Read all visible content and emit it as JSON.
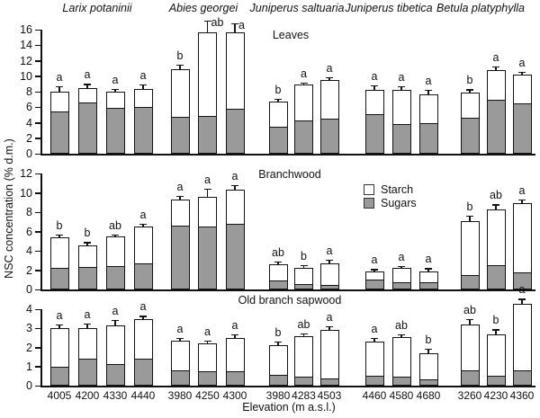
{
  "figure": {
    "ylabel": "NSC concentration (% d.m.)",
    "xlabel": "Elevation (m a.s.l.)",
    "legend": [
      {
        "label": "Starch",
        "color": "#ffffff"
      },
      {
        "label": "Sugars",
        "color": "#9a9a9a"
      }
    ]
  },
  "chart_data": {
    "type": "bar",
    "stacked": true,
    "units": "% d.m.",
    "series_names": [
      "Sugars",
      "Starch"
    ],
    "legend_position": "center-right of Branchwood panel",
    "grid": false,
    "species": [
      "Larix potaninii",
      "Abies georgei",
      "Juniperus saltuaria",
      "Juniperus tibetica",
      "Betula platyphylla"
    ],
    "elevations": [
      [
        "4005",
        "4200",
        "4330",
        "4440"
      ],
      [
        "3980",
        "4250",
        "4300"
      ],
      [
        "3980",
        "4283",
        "4503"
      ],
      [
        "4460",
        "4580",
        "4680"
      ],
      [
        "3260",
        "4230",
        "4360"
      ]
    ],
    "panels": [
      {
        "title": "Leaves",
        "ylim": [
          0,
          16
        ],
        "ytick_step": 2,
        "groups": [
          {
            "species": "Larix potaninii",
            "bars": [
              {
                "sugars": 5.4,
                "total": 8.0,
                "err": 0.7,
                "letter": "a"
              },
              {
                "sugars": 6.6,
                "total": 8.5,
                "err": 0.5,
                "letter": "a"
              },
              {
                "sugars": 5.9,
                "total": 8.0,
                "err": 0.4,
                "letter": "a"
              },
              {
                "sugars": 6.0,
                "total": 8.4,
                "err": 0.5,
                "letter": "a"
              }
            ]
          },
          {
            "species": "Abies georgei",
            "bars": [
              {
                "sugars": 4.7,
                "total": 10.9,
                "err": 0.6,
                "letter": "b"
              },
              {
                "sugars": 4.9,
                "total": 15.7,
                "err": 1.5,
                "letter": "ab",
                "letter_side": true
              },
              {
                "sugars": 5.8,
                "total": 15.6,
                "err": 1.2,
                "letter": "a",
                "letter_side": true
              }
            ]
          },
          {
            "species": "Juniperus saltuaria",
            "bars": [
              {
                "sugars": 3.5,
                "total": 6.7,
                "err": 0.4,
                "letter": "b"
              },
              {
                "sugars": 4.3,
                "total": 8.9,
                "err": 0.3,
                "letter": "a"
              },
              {
                "sugars": 4.5,
                "total": 9.5,
                "err": 0.4,
                "letter": "a"
              }
            ]
          },
          {
            "species": "Juniperus tibetica",
            "bars": [
              {
                "sugars": 5.1,
                "total": 8.2,
                "err": 0.6,
                "letter": "a"
              },
              {
                "sugars": 3.8,
                "total": 8.2,
                "err": 0.5,
                "letter": "a"
              },
              {
                "sugars": 4.0,
                "total": 7.6,
                "err": 0.6,
                "letter": "a"
              }
            ]
          },
          {
            "species": "Betula platyphylla",
            "bars": [
              {
                "sugars": 4.6,
                "total": 7.9,
                "err": 0.4,
                "letter": "b"
              },
              {
                "sugars": 7.0,
                "total": 10.8,
                "err": 0.5,
                "letter": "a"
              },
              {
                "sugars": 6.5,
                "total": 10.2,
                "err": 0.4,
                "letter": "a"
              }
            ]
          }
        ]
      },
      {
        "title": "Branchwood",
        "ylim": [
          0,
          12
        ],
        "ytick_step": 2,
        "groups": [
          {
            "species": "Larix potaninii",
            "bars": [
              {
                "sugars": 2.2,
                "total": 5.4,
                "err": 0.3,
                "letter": "b"
              },
              {
                "sugars": 2.3,
                "total": 4.6,
                "err": 0.3,
                "letter": "b"
              },
              {
                "sugars": 2.4,
                "total": 5.5,
                "err": 0.2,
                "letter": "ab"
              },
              {
                "sugars": 2.7,
                "total": 6.5,
                "err": 0.3,
                "letter": "a"
              }
            ]
          },
          {
            "species": "Abies georgei",
            "bars": [
              {
                "sugars": 6.6,
                "total": 9.3,
                "err": 0.4,
                "letter": "a"
              },
              {
                "sugars": 6.5,
                "total": 9.6,
                "err": 0.8,
                "letter": "a"
              },
              {
                "sugars": 6.8,
                "total": 10.3,
                "err": 0.5,
                "letter": "a"
              }
            ]
          },
          {
            "species": "Juniperus saltuaria",
            "bars": [
              {
                "sugars": 0.9,
                "total": 2.6,
                "err": 0.3,
                "letter": "ab"
              },
              {
                "sugars": 0.6,
                "total": 2.2,
                "err": 0.3,
                "letter": "b"
              },
              {
                "sugars": 0.5,
                "total": 2.7,
                "err": 0.4,
                "letter": "a"
              }
            ]
          },
          {
            "species": "Juniperus tibetica",
            "bars": [
              {
                "sugars": 1.0,
                "total": 1.9,
                "err": 0.2,
                "letter": "a"
              },
              {
                "sugars": 0.7,
                "total": 2.2,
                "err": 0.2,
                "letter": "a"
              },
              {
                "sugars": 0.7,
                "total": 1.9,
                "err": 0.3,
                "letter": "a"
              }
            ]
          },
          {
            "species": "Betula platyphylla",
            "bars": [
              {
                "sugars": 1.5,
                "total": 7.1,
                "err": 0.5,
                "letter": "b"
              },
              {
                "sugars": 2.5,
                "total": 8.3,
                "err": 0.5,
                "letter": "ab"
              },
              {
                "sugars": 1.8,
                "total": 8.9,
                "err": 0.4,
                "letter": "a"
              }
            ]
          }
        ]
      },
      {
        "title": "Old branch sapwood",
        "ylim": [
          0,
          4
        ],
        "ytick_step": 1,
        "groups": [
          {
            "species": "Larix potaninii",
            "bars": [
              {
                "sugars": 1.0,
                "total": 3.0,
                "err": 0.2,
                "letter": "a"
              },
              {
                "sugars": 1.4,
                "total": 3.0,
                "err": 0.25,
                "letter": "a"
              },
              {
                "sugars": 1.15,
                "total": 3.15,
                "err": 0.3,
                "letter": "a"
              },
              {
                "sugars": 1.4,
                "total": 3.5,
                "err": 0.15,
                "letter": "a"
              }
            ]
          },
          {
            "species": "Abies georgei",
            "bars": [
              {
                "sugars": 0.8,
                "total": 2.35,
                "err": 0.15,
                "letter": "a"
              },
              {
                "sugars": 0.75,
                "total": 2.2,
                "err": 0.15,
                "letter": "a"
              },
              {
                "sugars": 0.75,
                "total": 2.5,
                "err": 0.2,
                "letter": "a"
              }
            ]
          },
          {
            "species": "Juniperus saltuaria",
            "bars": [
              {
                "sugars": 0.55,
                "total": 2.1,
                "err": 0.2,
                "letter": "b"
              },
              {
                "sugars": 0.45,
                "total": 2.6,
                "err": 0.15,
                "letter": "ab"
              },
              {
                "sugars": 0.4,
                "total": 2.9,
                "err": 0.2,
                "letter": "a"
              }
            ]
          },
          {
            "species": "Juniperus tibetica",
            "bars": [
              {
                "sugars": 0.5,
                "total": 2.3,
                "err": 0.2,
                "letter": "a"
              },
              {
                "sugars": 0.45,
                "total": 2.55,
                "err": 0.15,
                "letter": "ab"
              },
              {
                "sugars": 0.35,
                "total": 1.7,
                "err": 0.25,
                "letter": "b"
              }
            ]
          },
          {
            "species": "Betula platyphylla",
            "bars": [
              {
                "sugars": 0.8,
                "total": 3.2,
                "err": 0.3,
                "letter": "ab"
              },
              {
                "sugars": 0.5,
                "total": 2.7,
                "err": 0.25,
                "letter": "b"
              },
              {
                "sugars": 0.8,
                "total": 4.3,
                "err": 0.25,
                "letter": "a"
              }
            ]
          }
        ]
      }
    ]
  }
}
